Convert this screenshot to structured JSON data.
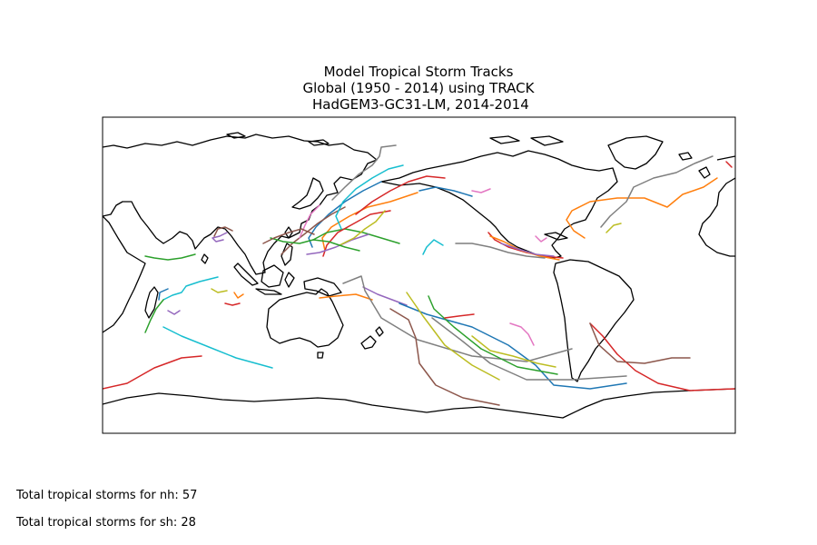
{
  "title": {
    "line1": "Model Tropical Storm Tracks",
    "line2": "Global (1950 - 2014) using TRACK",
    "line3": " HadGEM3-GC31-LM, 2014-2014"
  },
  "footer": {
    "nh_text": "Total tropical storms for nh: 57",
    "sh_text": "Total tropical storms for sh: 28"
  },
  "map": {
    "projection": "PlateCarree",
    "central_longitude": 180,
    "extent": {
      "lon": [
        0,
        360
      ],
      "lat": [
        -90,
        90
      ]
    },
    "coastline_color": "#000000",
    "track_colors": [
      "#1f77b4",
      "#ff7f0e",
      "#2ca02c",
      "#d62728",
      "#9467bd",
      "#8c564b",
      "#e377c2",
      "#7f7f7f",
      "#bcbd22",
      "#17becf"
    ]
  }
}
